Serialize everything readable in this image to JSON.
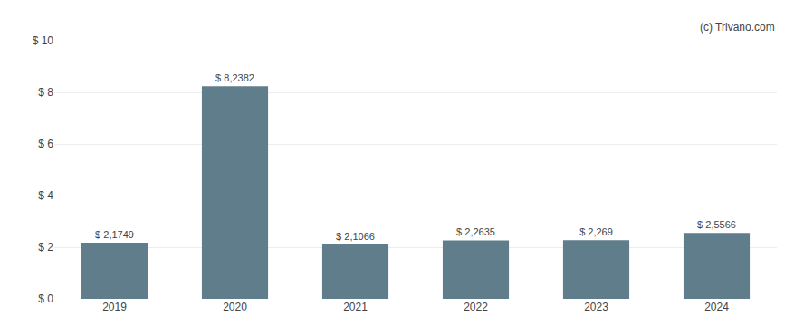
{
  "chart_data": {
    "type": "bar",
    "categories": [
      "2019",
      "2020",
      "2021",
      "2022",
      "2023",
      "2024"
    ],
    "values": [
      2.1749,
      8.2382,
      2.1066,
      2.2635,
      2.269,
      2.5566
    ],
    "value_labels": [
      "$ 2,1749",
      "$ 8,2382",
      "$ 2,1066",
      "$ 2,2635",
      "$ 2,269",
      "$ 2,5566"
    ],
    "data_labels": true,
    "color": "#607d8b",
    "ylim": [
      0,
      10
    ],
    "yticks": [
      {
        "value": 0,
        "label": "$ 0"
      },
      {
        "value": 2,
        "label": "$ 2"
      },
      {
        "value": 4,
        "label": "$ 4"
      },
      {
        "value": 6,
        "label": "$ 6"
      },
      {
        "value": 8,
        "label": "$ 8"
      },
      {
        "value": 10,
        "label": "$ 10"
      }
    ],
    "grid": true,
    "annotations": [
      "(c) Trivano.com"
    ]
  }
}
